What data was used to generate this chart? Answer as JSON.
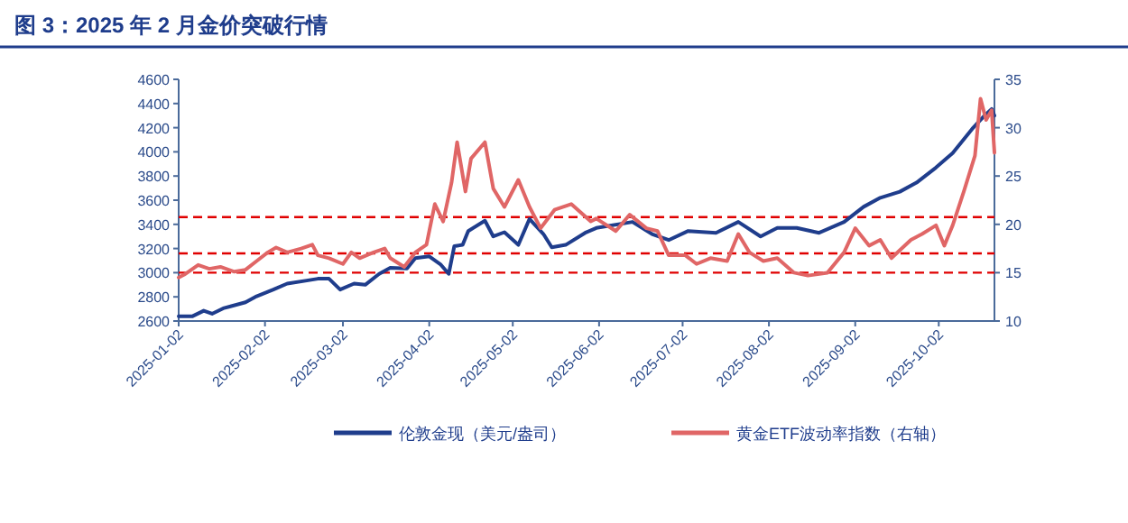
{
  "chart_data": {
    "type": "line",
    "title": "图 3：2025 年 2 月金价突破行情",
    "xlim": [
      "2025-01-02",
      "2025-10-22"
    ],
    "xticks": [
      "2025-01-02",
      "2025-02-02",
      "2025-03-02",
      "2025-04-02",
      "2025-05-02",
      "2025-06-02",
      "2025-07-02",
      "2025-08-02",
      "2025-09-02",
      "2025-10-02"
    ],
    "ylim": [
      2600,
      4600
    ],
    "yticks": [
      2600,
      2800,
      3000,
      3200,
      3400,
      3600,
      3800,
      4000,
      4200,
      4400,
      4600
    ],
    "y2lim": [
      10,
      35
    ],
    "y2ticks": [
      10,
      15,
      20,
      25,
      30,
      35
    ],
    "grid": false,
    "legend": "bottom",
    "line_style": "solid",
    "marker": "none",
    "ref_lines": [
      {
        "axis": "y",
        "value": 3000,
        "color": "#e00000",
        "line_style": "dashed"
      },
      {
        "axis": "y",
        "value": 3160,
        "color": "#e00000",
        "line_style": "dashed"
      },
      {
        "axis": "y",
        "value": 3460,
        "color": "#e00000",
        "line_style": "dashed"
      }
    ],
    "series": [
      {
        "name": "伦敦金现（美元/盎司）",
        "color": "#1f3d8c",
        "x": [
          "2025-01-02",
          "2025-01-07",
          "2025-01-11",
          "2025-01-14",
          "2025-01-18",
          "2025-01-26",
          "2025-01-30",
          "2025-02-05",
          "2025-02-10",
          "2025-02-17",
          "2025-02-21",
          "2025-02-25",
          "2025-03-01",
          "2025-03-06",
          "2025-03-10",
          "2025-03-15",
          "2025-03-19",
          "2025-03-25",
          "2025-03-28",
          "2025-04-02",
          "2025-04-06",
          "2025-04-09",
          "2025-04-11",
          "2025-04-14",
          "2025-04-16",
          "2025-04-22",
          "2025-04-25",
          "2025-04-29",
          "2025-05-04",
          "2025-05-08",
          "2025-05-13",
          "2025-05-16",
          "2025-05-21",
          "2025-05-28",
          "2025-06-01",
          "2025-06-14",
          "2025-06-21",
          "2025-06-27",
          "2025-07-04",
          "2025-07-14",
          "2025-07-22",
          "2025-07-30",
          "2025-08-05",
          "2025-08-12",
          "2025-08-20",
          "2025-08-29",
          "2025-09-05",
          "2025-09-11",
          "2025-09-18",
          "2025-09-24",
          "2025-10-01",
          "2025-10-07",
          "2025-10-14",
          "2025-10-18",
          "2025-10-21",
          "2025-10-22"
        ],
        "values": [
          2640,
          2640,
          2685,
          2660,
          2705,
          2755,
          2805,
          2860,
          2910,
          2935,
          2950,
          2950,
          2860,
          2910,
          2900,
          2990,
          3040,
          3035,
          3120,
          3135,
          3070,
          2990,
          3220,
          3230,
          3345,
          3430,
          3300,
          3335,
          3230,
          3445,
          3320,
          3210,
          3230,
          3330,
          3370,
          3420,
          3320,
          3270,
          3345,
          3330,
          3420,
          3300,
          3370,
          3370,
          3330,
          3420,
          3545,
          3620,
          3670,
          3745,
          3870,
          3990,
          4190,
          4290,
          4355,
          4300
        ]
      },
      {
        "name": "黄金ETF波动率指数（右轴）",
        "color": "#e06666",
        "axis": "y2",
        "x": [
          "2025-01-02",
          "2025-01-04",
          "2025-01-09",
          "2025-01-13",
          "2025-01-17",
          "2025-01-22",
          "2025-01-26",
          "2025-01-30",
          "2025-02-03",
          "2025-02-06",
          "2025-02-10",
          "2025-02-15",
          "2025-02-19",
          "2025-02-21",
          "2025-02-25",
          "2025-03-02",
          "2025-03-05",
          "2025-03-08",
          "2025-03-13",
          "2025-03-17",
          "2025-03-19",
          "2025-03-24",
          "2025-03-28",
          "2025-04-01",
          "2025-04-04",
          "2025-04-07",
          "2025-04-10",
          "2025-04-12",
          "2025-04-15",
          "2025-04-17",
          "2025-04-22",
          "2025-04-25",
          "2025-04-29",
          "2025-05-04",
          "2025-05-08",
          "2025-05-12",
          "2025-05-17",
          "2025-05-23",
          "2025-05-30",
          "2025-06-01",
          "2025-06-08",
          "2025-06-13",
          "2025-06-19",
          "2025-06-23",
          "2025-06-27",
          "2025-07-03",
          "2025-07-07",
          "2025-07-12",
          "2025-07-18",
          "2025-07-22",
          "2025-07-26",
          "2025-07-31",
          "2025-08-05",
          "2025-08-11",
          "2025-08-16",
          "2025-08-23",
          "2025-08-29",
          "2025-09-02",
          "2025-09-07",
          "2025-09-11",
          "2025-09-15",
          "2025-09-22",
          "2025-09-26",
          "2025-10-01",
          "2025-10-04",
          "2025-10-07",
          "2025-10-11",
          "2025-10-15",
          "2025-10-17",
          "2025-10-19",
          "2025-10-21",
          "2025-10-22"
        ],
        "values": [
          14.5,
          14.8,
          15.8,
          15.4,
          15.6,
          15.1,
          15.3,
          16.2,
          17.1,
          17.6,
          17.1,
          17.5,
          17.9,
          16.8,
          16.5,
          15.9,
          17.1,
          16.5,
          17.1,
          17.5,
          16.5,
          15.6,
          17.1,
          17.9,
          22.1,
          20.3,
          24.3,
          28.5,
          23.4,
          26.8,
          28.5,
          23.7,
          21.8,
          24.6,
          21.8,
          19.6,
          21.5,
          22.1,
          20.3,
          20.6,
          19.3,
          21.0,
          19.6,
          19.3,
          16.8,
          16.8,
          15.9,
          16.5,
          16.2,
          19.0,
          17.1,
          16.2,
          16.5,
          15.0,
          14.7,
          15.0,
          17.1,
          19.6,
          17.8,
          18.4,
          16.5,
          18.4,
          19.0,
          19.9,
          17.8,
          19.9,
          23.4,
          27.1,
          33.0,
          30.8,
          31.8,
          27.4
        ]
      }
    ]
  }
}
